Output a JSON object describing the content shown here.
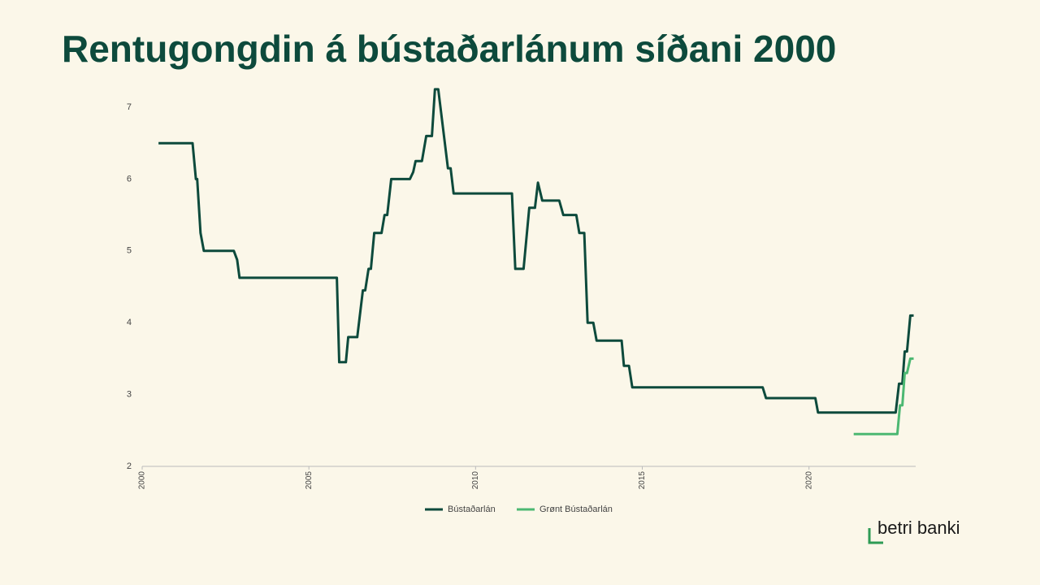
{
  "chart_data": {
    "type": "line",
    "title": "Rentugongdin á bústaðarlánum síðani 2000",
    "series": [
      {
        "name": "Bústaðarlán",
        "color": "#0d4a3c",
        "x": [
          2000.49,
          2001.51,
          2001.61,
          2001.65,
          2001.75,
          2001.85,
          2002.75,
          2002.85,
          2002.92,
          2005.84,
          2005.91,
          2006.11,
          2006.18,
          2006.45,
          2006.62,
          2006.69,
          2006.79,
          2006.86,
          2006.96,
          2007.18,
          2007.27,
          2007.35,
          2007.47,
          2008.03,
          2008.13,
          2008.2,
          2008.39,
          2008.52,
          2008.69,
          2008.78,
          2008.88,
          2009.17,
          2009.25,
          2009.34,
          2011.09,
          2011.19,
          2011.44,
          2011.61,
          2011.78,
          2011.87,
          2012.0,
          2012.51,
          2012.63,
          2013.02,
          2013.11,
          2013.26,
          2013.36,
          2013.53,
          2013.63,
          2014.38,
          2014.45,
          2014.6,
          2014.7,
          2018.61,
          2018.71,
          2020.19,
          2020.27,
          2022.6,
          2022.7,
          2022.8,
          2022.87,
          2022.94,
          2023.04,
          2023.14
        ],
        "values": [
          6.5,
          6.5,
          6.0,
          6.0,
          5.25,
          5.0,
          5.0,
          4.875,
          4.625,
          4.625,
          3.45,
          3.45,
          3.8,
          3.8,
          4.45,
          4.45,
          4.75,
          4.75,
          5.25,
          5.25,
          5.5,
          5.5,
          6.0,
          6.0,
          6.1,
          6.25,
          6.25,
          6.6,
          6.6,
          7.25,
          7.25,
          6.15,
          6.15,
          5.8,
          5.8,
          4.75,
          4.75,
          5.6,
          5.6,
          5.95,
          5.7,
          5.7,
          5.5,
          5.5,
          5.25,
          5.25,
          4.0,
          4.0,
          3.75,
          3.75,
          3.4,
          3.4,
          3.1,
          3.1,
          2.95,
          2.95,
          2.75,
          2.75,
          3.15,
          3.15,
          3.6,
          3.6,
          4.1,
          4.1
        ]
      },
      {
        "name": "Grønt Bústaðarlán",
        "color": "#4cb872",
        "x": [
          2021.34,
          2022.65,
          2022.73,
          2022.8,
          2022.87,
          2022.94,
          2023.04,
          2023.14
        ],
        "values": [
          2.45,
          2.45,
          2.85,
          2.85,
          3.3,
          3.3,
          3.5,
          3.5
        ]
      }
    ],
    "xlim": [
      2000,
      2023.2
    ],
    "xticks": [
      2000,
      2005,
      2010,
      2015,
      2020
    ],
    "ylim": [
      2,
      7.3
    ],
    "yticks": [
      2,
      3,
      4,
      5,
      6,
      7
    ],
    "legend": "bottom"
  },
  "logo": "betri banki"
}
